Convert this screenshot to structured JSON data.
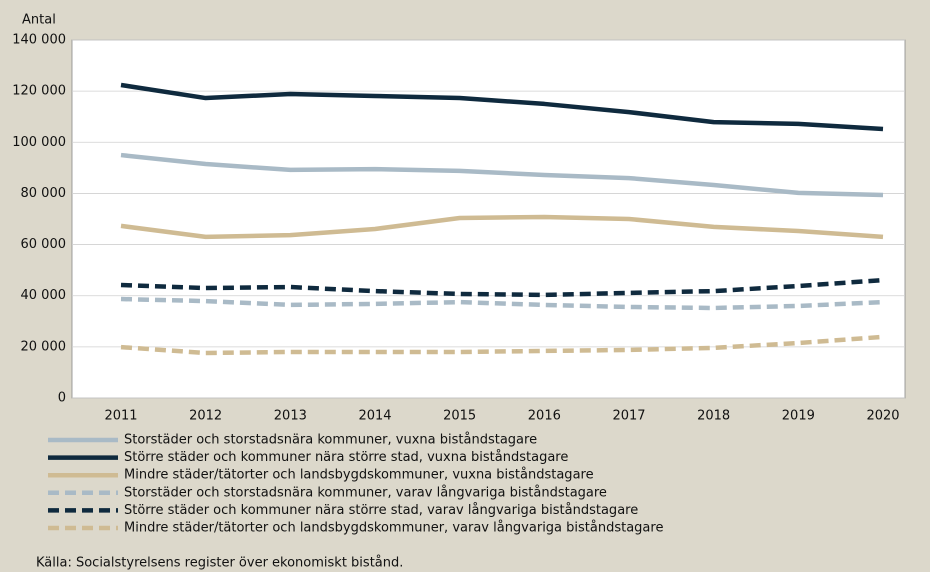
{
  "chart_data": {
    "type": "line",
    "y_label": "Antal",
    "categories": [
      "2011",
      "2012",
      "2013",
      "2014",
      "2015",
      "2016",
      "2017",
      "2018",
      "2019",
      "2020"
    ],
    "ylim": [
      0,
      140000
    ],
    "yticks": [
      0,
      {
        "value": 20000,
        "label": "20 000"
      },
      {
        "value": 40000,
        "label": "40 000"
      },
      {
        "value": 60000,
        "label": "60 000"
      },
      {
        "value": 80000,
        "label": "80 000"
      },
      {
        "value": 100000,
        "label": "100 000"
      },
      {
        "value": 120000,
        "label": "120 000"
      },
      {
        "value": 140000,
        "label": "140 000"
      }
    ],
    "grid": true,
    "series": [
      {
        "name": "Storstäder och storstadsnära kommuner, vuxna biståndstagare",
        "color": "#a9bac6",
        "line_style": "solid",
        "values": [
          95000,
          91500,
          89200,
          89500,
          88800,
          87200,
          86000,
          83300,
          80200,
          79400
        ]
      },
      {
        "name": "Större städer och kommuner nära större stad, vuxna biståndstagare",
        "color": "#0f2a3e",
        "line_style": "solid",
        "values": [
          122400,
          117300,
          118900,
          118100,
          117300,
          115000,
          111800,
          107900,
          107200,
          105200
        ]
      },
      {
        "name": "Mindre städer/tätorter och landsbygdskommuner, vuxna biståndstagare",
        "color": "#cfbb93",
        "line_style": "solid",
        "values": [
          67300,
          63000,
          63700,
          66100,
          70400,
          70800,
          70000,
          66900,
          65300,
          63000
        ]
      },
      {
        "name": "Storstäder och storstadsnära kommuner, varav långvariga biståndstagare",
        "color": "#a9bac6",
        "line_style": "dashed",
        "values": [
          38700,
          37900,
          36400,
          36800,
          37500,
          36400,
          35600,
          35200,
          36000,
          37500
        ]
      },
      {
        "name": "Större städer och kommuner nära större stad, varav långvariga biståndstagare",
        "color": "#0f2a3e",
        "line_style": "dashed",
        "values": [
          44200,
          43000,
          43400,
          41800,
          40700,
          40300,
          41100,
          41800,
          43800,
          46100
        ]
      },
      {
        "name": "Mindre städer/tätorter och landsbygdskommuner, varav långvariga biståndstagare",
        "color": "#cfbb93",
        "line_style": "dashed",
        "values": [
          19900,
          17600,
          18000,
          18000,
          18000,
          18400,
          18800,
          19600,
          21500,
          23900
        ]
      }
    ],
    "source": "Källa: Socialstyrelsens register över ekonomiskt bistånd."
  }
}
